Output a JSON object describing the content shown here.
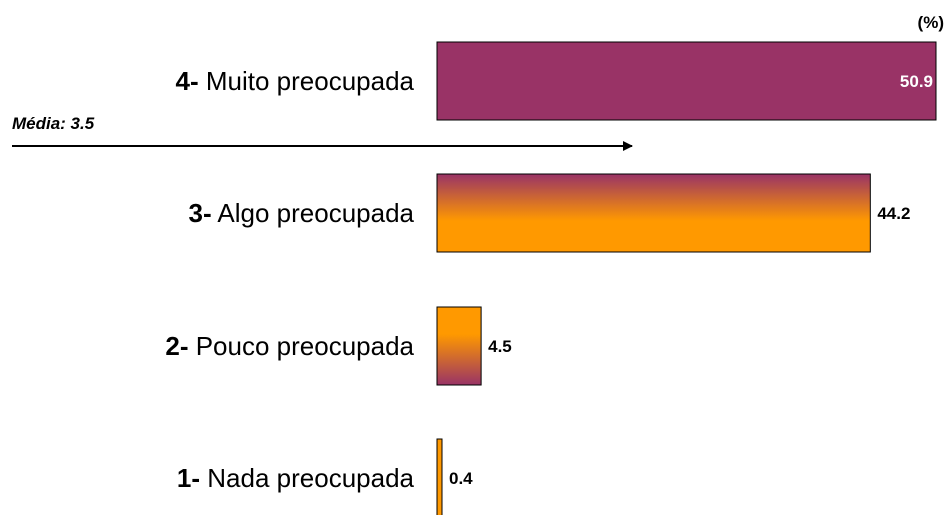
{
  "chart_data": {
    "type": "bar",
    "orientation": "horizontal",
    "unit": "(%)",
    "categories": [
      {
        "num": "4-",
        "label": "Muito preocupada"
      },
      {
        "num": "3-",
        "label": "Algo preocupada"
      },
      {
        "num": "2-",
        "label": "Pouco preocupada"
      },
      {
        "num": "1-",
        "label": "Nada preocupada"
      }
    ],
    "values": [
      50.9,
      44.2,
      4.5,
      0.4
    ],
    "value_labels": [
      "50.9",
      "44.2",
      "4.5",
      "0.4"
    ],
    "value_label_colors": [
      "#ffffff",
      "#000000",
      "#000000",
      "#000000"
    ],
    "xlim": [
      0,
      50.9
    ],
    "grid": false,
    "annotation": {
      "label": "Média: 3.5",
      "value": 3.5
    },
    "colors": {
      "purple": "#993366",
      "orange": "#ff9900"
    }
  }
}
